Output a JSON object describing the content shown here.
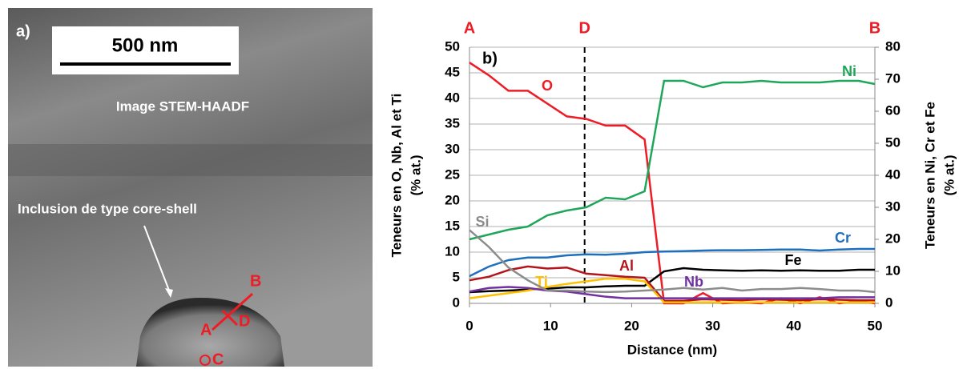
{
  "image_panel": {
    "panel_label": "a)",
    "scale_bar": "500 nm",
    "caption": "Image STEM-HAADF",
    "annotation": "Inclusion de type core-shell",
    "points": [
      "B",
      "A",
      "D",
      "C"
    ]
  },
  "chart_data": {
    "type": "line",
    "panel_label": "b)",
    "xlabel": "Distance (nm)",
    "ylabel": [
      "Teneurs en O, Nb, Al et Ti",
      "(% at.)"
    ],
    "y2label": [
      "Teneurs en Ni, Cr et Fe",
      "(% at.)"
    ],
    "xlim": [
      0,
      50
    ],
    "xticks": [
      0,
      10,
      20,
      30,
      40,
      50
    ],
    "ylim": [
      0,
      50
    ],
    "yticks": [
      0,
      5,
      10,
      15,
      20,
      25,
      30,
      35,
      40,
      45,
      50
    ],
    "y2lim": [
      0,
      80
    ],
    "y2ticks": [
      0,
      10,
      20,
      30,
      40,
      50,
      60,
      70,
      80
    ],
    "grid": true,
    "markers": [
      {
        "label": "A",
        "x": 0
      },
      {
        "label": "D",
        "x": 14.2
      },
      {
        "label": "B",
        "x": 50
      }
    ],
    "x": [
      0,
      2.4,
      4.8,
      7.2,
      9.6,
      12,
      14.4,
      16.8,
      19.2,
      21.6,
      24,
      26.4,
      28.8,
      31.2,
      33.6,
      36,
      38.4,
      40.8,
      43.2,
      45.6,
      48,
      50
    ],
    "series": [
      {
        "name": "O",
        "color": "#ee1c25",
        "values": [
          47,
          44.5,
          41.5,
          41.5,
          39,
          36.5,
          36,
          34.7,
          34.7,
          32,
          0,
          0,
          2,
          0,
          0.2,
          0,
          1,
          0,
          1.2,
          0,
          0.5,
          0
        ]
      },
      {
        "name": "Ni",
        "color": "#1fa65a",
        "axis": "y2",
        "values": [
          20,
          21.5,
          23,
          24,
          27.5,
          29,
          30,
          33,
          32.5,
          35,
          69.5,
          69.5,
          67.5,
          69,
          69,
          69.5,
          69,
          69,
          69,
          69.5,
          69.5,
          68.5
        ]
      },
      {
        "name": "Cr",
        "color": "#1f6fbf",
        "axis": "y2",
        "values": [
          8.5,
          11.5,
          13.5,
          14.3,
          14.3,
          15,
          15.3,
          15.2,
          15.5,
          16,
          16.2,
          16.3,
          16.5,
          16.6,
          16.6,
          16.7,
          16.8,
          16.8,
          16.5,
          16.8,
          17,
          17
        ]
      },
      {
        "name": "Fe",
        "color": "#000000",
        "axis": "y2",
        "values": [
          3.5,
          3.8,
          4,
          4.3,
          4.6,
          5,
          5,
          5.3,
          5.5,
          5.5,
          10,
          11,
          10.5,
          10.3,
          10.2,
          10.3,
          10.2,
          10.3,
          10.2,
          10.2,
          10.5,
          10.5
        ]
      },
      {
        "name": "Al",
        "color": "#b3151b",
        "values": [
          4.5,
          5.2,
          6.5,
          7.2,
          6.8,
          7,
          5.8,
          5.5,
          5.2,
          5,
          0.5,
          0.5,
          0.8,
          0.7,
          0.6,
          0.8,
          0.7,
          0.6,
          0.8,
          0.7,
          0.6,
          0.6
        ]
      },
      {
        "name": "Ti",
        "color": "#ffc000",
        "values": [
          1,
          1.5,
          2,
          2.5,
          3.2,
          3.8,
          4.3,
          4.8,
          4.8,
          4.3,
          0.2,
          0.2,
          0.2,
          0.2,
          0.2,
          0.2,
          0.2,
          0.2,
          0.2,
          0.2,
          0.2,
          0.2
        ]
      },
      {
        "name": "Nb",
        "color": "#7030a0",
        "values": [
          2.3,
          3,
          3.2,
          3,
          2.5,
          2.3,
          1.8,
          1.3,
          1,
          1,
          1,
          1,
          1,
          1,
          1,
          1,
          1,
          1,
          1,
          1.2,
          1.2,
          1.2
        ]
      },
      {
        "name": "Si",
        "color": "#8c8c8c",
        "values": [
          14.3,
          11,
          7,
          4.5,
          2.5,
          2.5,
          2.3,
          2.2,
          2.3,
          2.5,
          2.7,
          3,
          2.7,
          3,
          2.5,
          2.8,
          2.8,
          3,
          2.8,
          2.5,
          2.5,
          2.2
        ]
      }
    ]
  }
}
